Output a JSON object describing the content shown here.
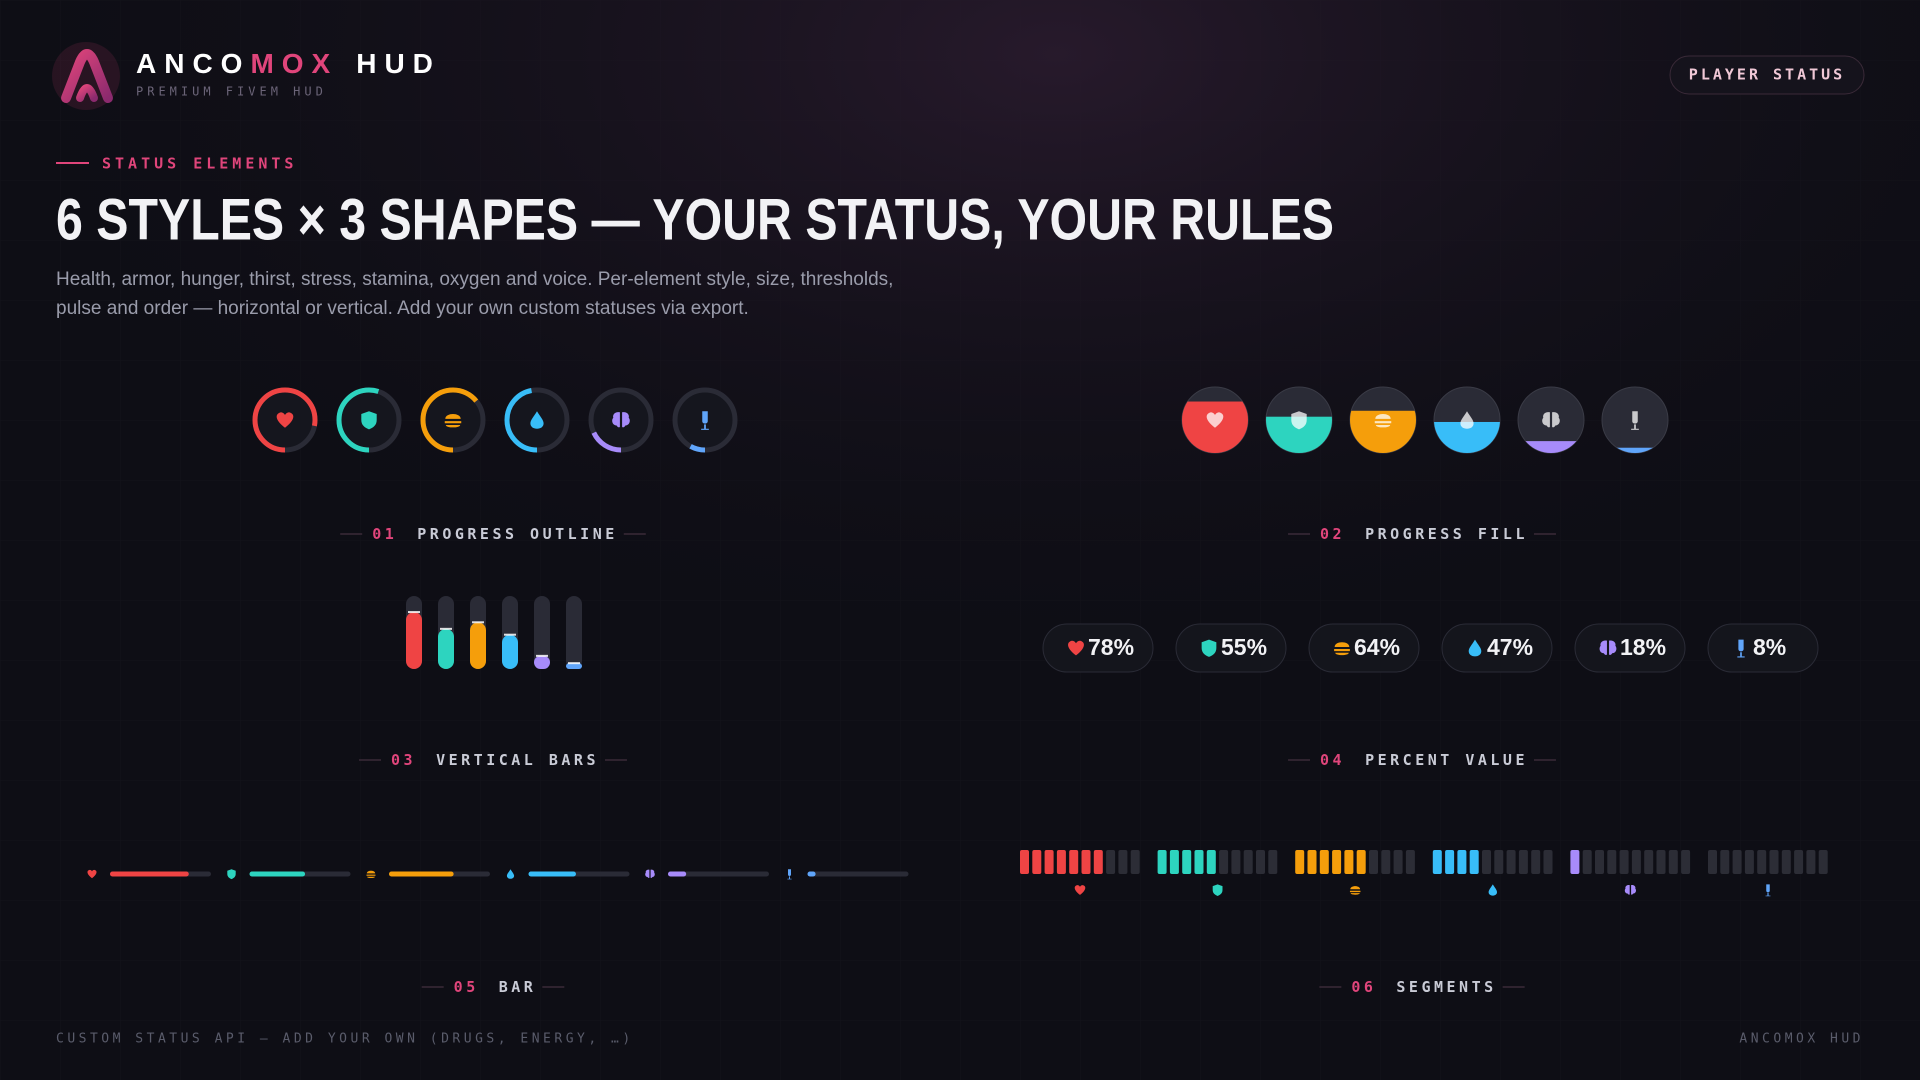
{
  "header": {
    "brand": [
      "ANCO",
      "MOX",
      "HUD"
    ],
    "tagline": "PREMIUM FIVEM HUD",
    "button": "PLAYER STATUS"
  },
  "hero": {
    "eyebrow": "STATUS ELEMENTS",
    "title": "6 STYLES × 3 SHAPES — YOUR STATUS, YOUR RULES",
    "description": [
      "Health, armor, hunger, thirst, stress, stamina, oxygen and voice. Per-element style, size, thresholds,",
      "pulse and order — horizontal or vertical. Add your own custom statuses via export."
    ]
  },
  "statuses": [
    {
      "value": 78,
      "value_label": "78%",
      "color": "#ef4444"
    },
    {
      "value": 55,
      "value_label": "55%",
      "color": "#2dd4bf"
    },
    {
      "value": 64,
      "value_label": "64%",
      "color": "#f59e0b"
    },
    {
      "value": 47,
      "value_label": "47%",
      "color": "#38bdf8"
    },
    {
      "value": 18,
      "value_label": "18%",
      "color": "#a78bfa"
    },
    {
      "value": 8,
      "value_label": "8%",
      "color": "#60a5fa"
    }
  ],
  "styles": [
    {
      "number": "01",
      "label": "PROGRESS OUTLINE"
    },
    {
      "number": "02",
      "label": "PROGRESS FILL"
    },
    {
      "number": "03",
      "label": "VERTICAL BARS"
    },
    {
      "number": "04",
      "label": "PERCENT VALUE"
    },
    {
      "number": "05",
      "label": "BAR"
    },
    {
      "number": "06",
      "label": "SEGMENTS"
    }
  ],
  "footer": {
    "left": "CUSTOM STATUS API — ADD YOUR OWN (DRUGS, ENERGY, …)",
    "right": "ANCOMOX HUD"
  }
}
